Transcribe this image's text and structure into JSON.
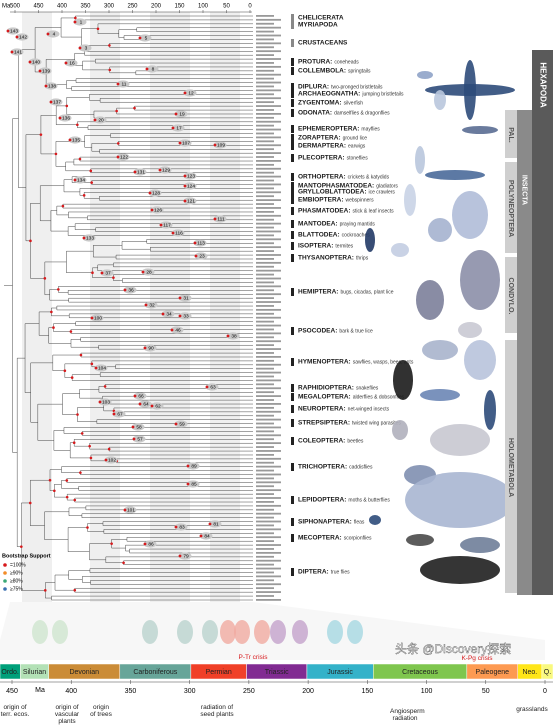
{
  "time_axis_top": {
    "unit": "Ma",
    "ticks": [
      500,
      450,
      400,
      350,
      300,
      250,
      200,
      150,
      100,
      50,
      0
    ]
  },
  "orders": [
    {
      "name": "CHELICERATA"
    },
    {
      "name": "MYRIAPODA"
    },
    {
      "name": "CRUSTACEANS"
    },
    {
      "name": "PROTURA:",
      "desc": "coneheads"
    },
    {
      "name": "COLLEMBOLA:",
      "desc": "springtails"
    },
    {
      "name": "DIPLURA:",
      "desc": "two-pronged bristletails"
    },
    {
      "name": "ARCHAEOGNATHA:",
      "desc": "jumping bristletails"
    },
    {
      "name": "ZYGENTOMA:",
      "desc": "silverfish"
    },
    {
      "name": "ODONATA:",
      "desc": "damselflies & dragonflies"
    },
    {
      "name": "EPHEMEROPTERA:",
      "desc": "mayflies"
    },
    {
      "name": "ZORAPTERA:",
      "desc": "ground lice"
    },
    {
      "name": "DERMAPTERA:",
      "desc": "earwigs"
    },
    {
      "name": "PLECOPTERA:",
      "desc": "stoneflies"
    },
    {
      "name": "ORTHOPTERA:",
      "desc": "crickets & katydids"
    },
    {
      "name": "MANTOPHASMATODEA:",
      "desc": "gladiators"
    },
    {
      "name": "GRYLLOBLATTODEA:",
      "desc": "ice crawlers"
    },
    {
      "name": "EMBIOPTERA:",
      "desc": "webspinners"
    },
    {
      "name": "PHASMATODEA:",
      "desc": "stick & leaf insects"
    },
    {
      "name": "MANTODEA:",
      "desc": "praying mantids"
    },
    {
      "name": "BLATTODEA:",
      "desc": "cockroaches"
    },
    {
      "name": "ISOPTERA:",
      "desc": "termites"
    },
    {
      "name": "THYSANOPTERA:",
      "desc": "thrips"
    },
    {
      "name": "HEMIPTERA:",
      "desc": "bugs, cicadas, plant lice"
    },
    {
      "name": "PSOCODEA:",
      "desc": "bark & true lice"
    },
    {
      "name": "HYMENOPTERA:",
      "desc": "sawflies, wasps, bees, ants"
    },
    {
      "name": "RAPHIDIOPTERA:",
      "desc": "snakeflies"
    },
    {
      "name": "MEGALOPTERA:",
      "desc": "alderflies & dobsonflies"
    },
    {
      "name": "NEUROPTERA:",
      "desc": "net-winged insects"
    },
    {
      "name": "STREPSIPTERA:",
      "desc": "twisted wing parasites"
    },
    {
      "name": "COLEOPTERA:",
      "desc": "beetles"
    },
    {
      "name": "TRICHOPTERA:",
      "desc": "caddisflies"
    },
    {
      "name": "LEPIDOPTERA:",
      "desc": "moths & butterflies"
    },
    {
      "name": "SIPHONAPTERA:",
      "desc": "fleas"
    },
    {
      "name": "MECOPTERA:",
      "desc": "scorpionflies"
    },
    {
      "name": "DIPTERA:",
      "desc": "true flies"
    }
  ],
  "clades": [
    "HEXAPODA",
    "INSECTA",
    "PAL.",
    "POLYNEOPTERA",
    "CONDYLO.",
    "HOLOMETABOLA"
  ],
  "nodes": [
    "143",
    "142",
    "141",
    "140",
    "139",
    "138",
    "137",
    "136",
    "135",
    "134",
    "133",
    "1",
    "4",
    "5",
    "3",
    "16",
    "8",
    "11",
    "12",
    "19",
    "20",
    "17",
    "122",
    "107",
    "109",
    "131",
    "129",
    "124",
    "123",
    "128",
    "126",
    "121",
    "117",
    "116",
    "111",
    "113",
    "23",
    "37",
    "28",
    "36",
    "31",
    "32",
    "34",
    "33",
    "100",
    "46",
    "38",
    "90",
    "104",
    "103",
    "66",
    "63",
    "64",
    "62",
    "67",
    "59",
    "58",
    "57",
    "102",
    "89",
    "85",
    "101",
    "81",
    "83",
    "84",
    "86",
    "79"
  ],
  "legend": {
    "title": "Bootstrap Support",
    "items": [
      "=100%",
      "≥90%",
      "≥80%",
      "≥75%"
    ]
  },
  "periods": [
    {
      "name": "Ordo.",
      "color": "#00a07a"
    },
    {
      "name": "Silurian",
      "color": "#b3e1b6"
    },
    {
      "name": "Devonian",
      "color": "#cb8c37"
    },
    {
      "name": "Carboniferous",
      "color": "#67a599"
    },
    {
      "name": "Permian",
      "color": "#f04028"
    },
    {
      "name": "Triassic",
      "color": "#812b92"
    },
    {
      "name": "Jurassic",
      "color": "#34b2c9"
    },
    {
      "name": "Cretaceous",
      "color": "#7fc64e"
    },
    {
      "name": "Paleogene",
      "color": "#fd9a52"
    },
    {
      "name": "Neo.",
      "color": "#ffe619"
    },
    {
      "name": "Q.",
      "color": "#f9f97f"
    }
  ],
  "time_axis_bottom": {
    "unit": "Ma",
    "ticks": [
      450,
      400,
      350,
      300,
      250,
      200,
      150,
      100,
      50,
      0
    ]
  },
  "events": [
    "origin of terr. ecos.",
    "origin of vascular plants",
    "origin of trees",
    "radiation of seed plants",
    "P-Tr crisis",
    "Angiosperm radiation",
    "K-Pg crisis",
    "grasslands"
  ],
  "watermark": "头条 @Discovery探索"
}
